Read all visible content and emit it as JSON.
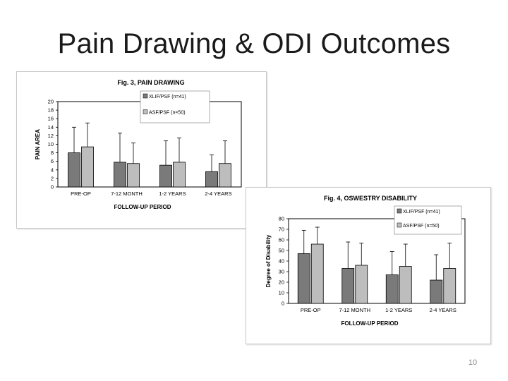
{
  "slide": {
    "title": "Pain Drawing & ODI Outcomes",
    "page_number": "10"
  },
  "colors": {
    "series1": "#7a7a7a",
    "series2": "#bdbdbd",
    "axis": "#000000",
    "grid": "#ffffff"
  },
  "chart_data": [
    {
      "id": "fig3",
      "type": "bar",
      "title": "Fig. 3, PAIN DRAWING",
      "xlabel": "FOLLOW-UP PERIOD",
      "ylabel": "PAIN AREA",
      "categories": [
        "PRE-OP",
        "7-12 MONTH",
        "1-2 YEARS",
        "2-4 YEARS"
      ],
      "yticks": [
        "0",
        "2",
        "4",
        "6",
        "8",
        "10",
        "12",
        "14",
        "16",
        "18",
        "20"
      ],
      "ylim": [
        0,
        20
      ],
      "legend_position": "top-right",
      "series": [
        {
          "name": "XLIF/PSF (n=41)",
          "values": [
            8.0,
            5.8,
            5.1,
            3.6
          ],
          "error_upper": [
            14.0,
            12.6,
            10.8,
            7.5
          ]
        },
        {
          "name": "ASF/PSF (n=50)",
          "values": [
            9.4,
            5.5,
            5.8,
            5.5
          ],
          "error_upper": [
            15.0,
            10.3,
            11.5,
            10.8
          ]
        }
      ]
    },
    {
      "id": "fig4",
      "type": "bar",
      "title": "Fig. 4, OSWESTRY DISABILITY",
      "xlabel": "FOLLOW-UP PERIOD",
      "ylabel": "Degree of Disability",
      "categories": [
        "PRE-OP",
        "7-12 MONTH",
        "1-2 YEARS",
        "2-4 YEARS"
      ],
      "yticks": [
        "0",
        "10",
        "20",
        "30",
        "40",
        "50",
        "60",
        "70",
        "80"
      ],
      "ylim": [
        0,
        80
      ],
      "legend_position": "top-right",
      "series": [
        {
          "name": "XLIF/PSF (n=41)",
          "values": [
            47,
            33,
            27,
            22
          ],
          "error_upper": [
            69,
            58,
            49,
            46
          ]
        },
        {
          "name": "ASF/PSF (n=50)",
          "values": [
            56,
            36,
            35,
            33
          ],
          "error_upper": [
            72,
            57,
            56,
            57
          ]
        }
      ]
    }
  ]
}
